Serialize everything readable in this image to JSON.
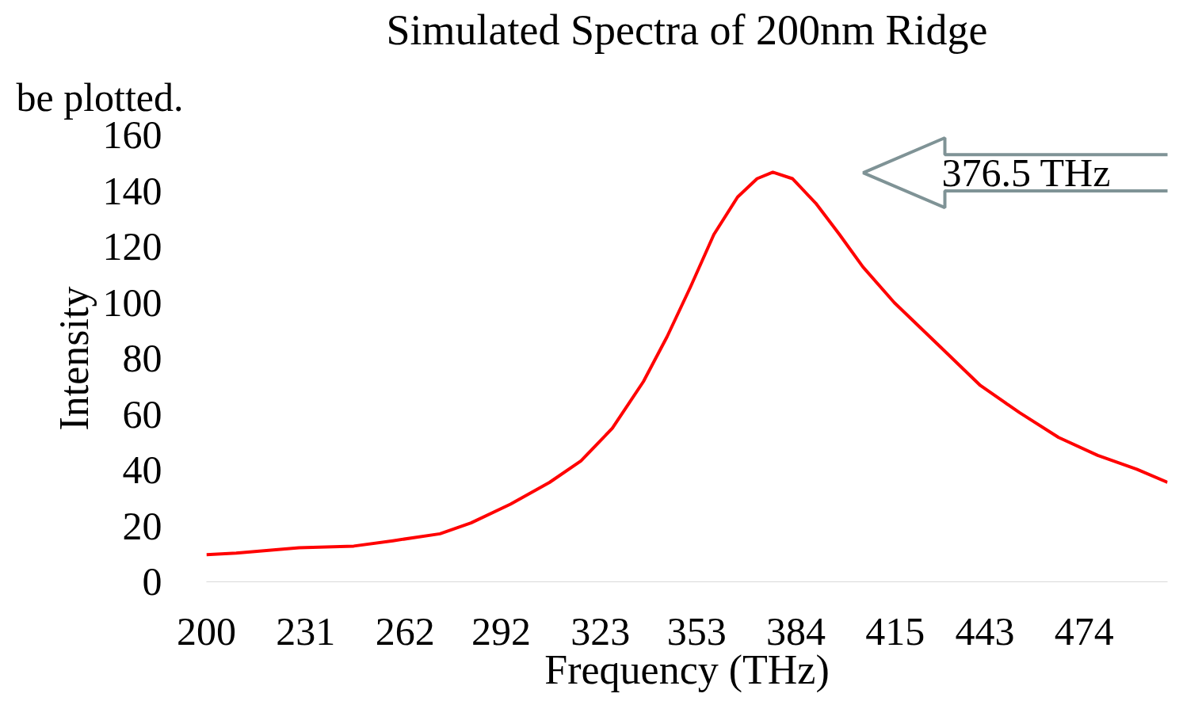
{
  "chart_data": {
    "type": "line",
    "title": "Simulated Spectra of 200nm Ridge",
    "xlabel": "Frequency (THz)",
    "ylabel": "Intensity",
    "annotations": [
      "376.5 THz",
      "be plotted."
    ],
    "x": [
      200,
      209.3,
      228.9,
      246,
      258.2,
      272.9,
      282.6,
      294.9,
      307.1,
      316.9,
      326.7,
      336.4,
      343.8,
      351.1,
      358.4,
      365.8,
      371.9,
      376.8,
      382.9,
      390.2,
      397.6,
      404.9,
      414.7,
      429.3,
      441.6,
      453.8,
      466,
      478.2,
      490.4,
      500
    ],
    "series": [
      {
        "color": "#ff0000",
        "values": [
          9.7,
          10.3,
          12.2,
          12.8,
          14.7,
          17.2,
          21.1,
          27.8,
          35.6,
          43.3,
          55,
          71.7,
          87.8,
          105.6,
          124.4,
          137.8,
          144.4,
          146.7,
          144.4,
          135.6,
          124.4,
          112.8,
          100,
          83.9,
          70.3,
          60.6,
          51.7,
          45.3,
          40.3,
          35.6
        ]
      }
    ],
    "xlim": [
      200,
      500
    ],
    "xticks": [
      200,
      231,
      262,
      292,
      323,
      353,
      384,
      415,
      443,
      474
    ],
    "ylim": [
      0,
      160
    ],
    "yticks": [
      0,
      20,
      40,
      60,
      80,
      100,
      120,
      140,
      160
    ],
    "grid": false,
    "line_style": "solid",
    "marker": "none"
  }
}
